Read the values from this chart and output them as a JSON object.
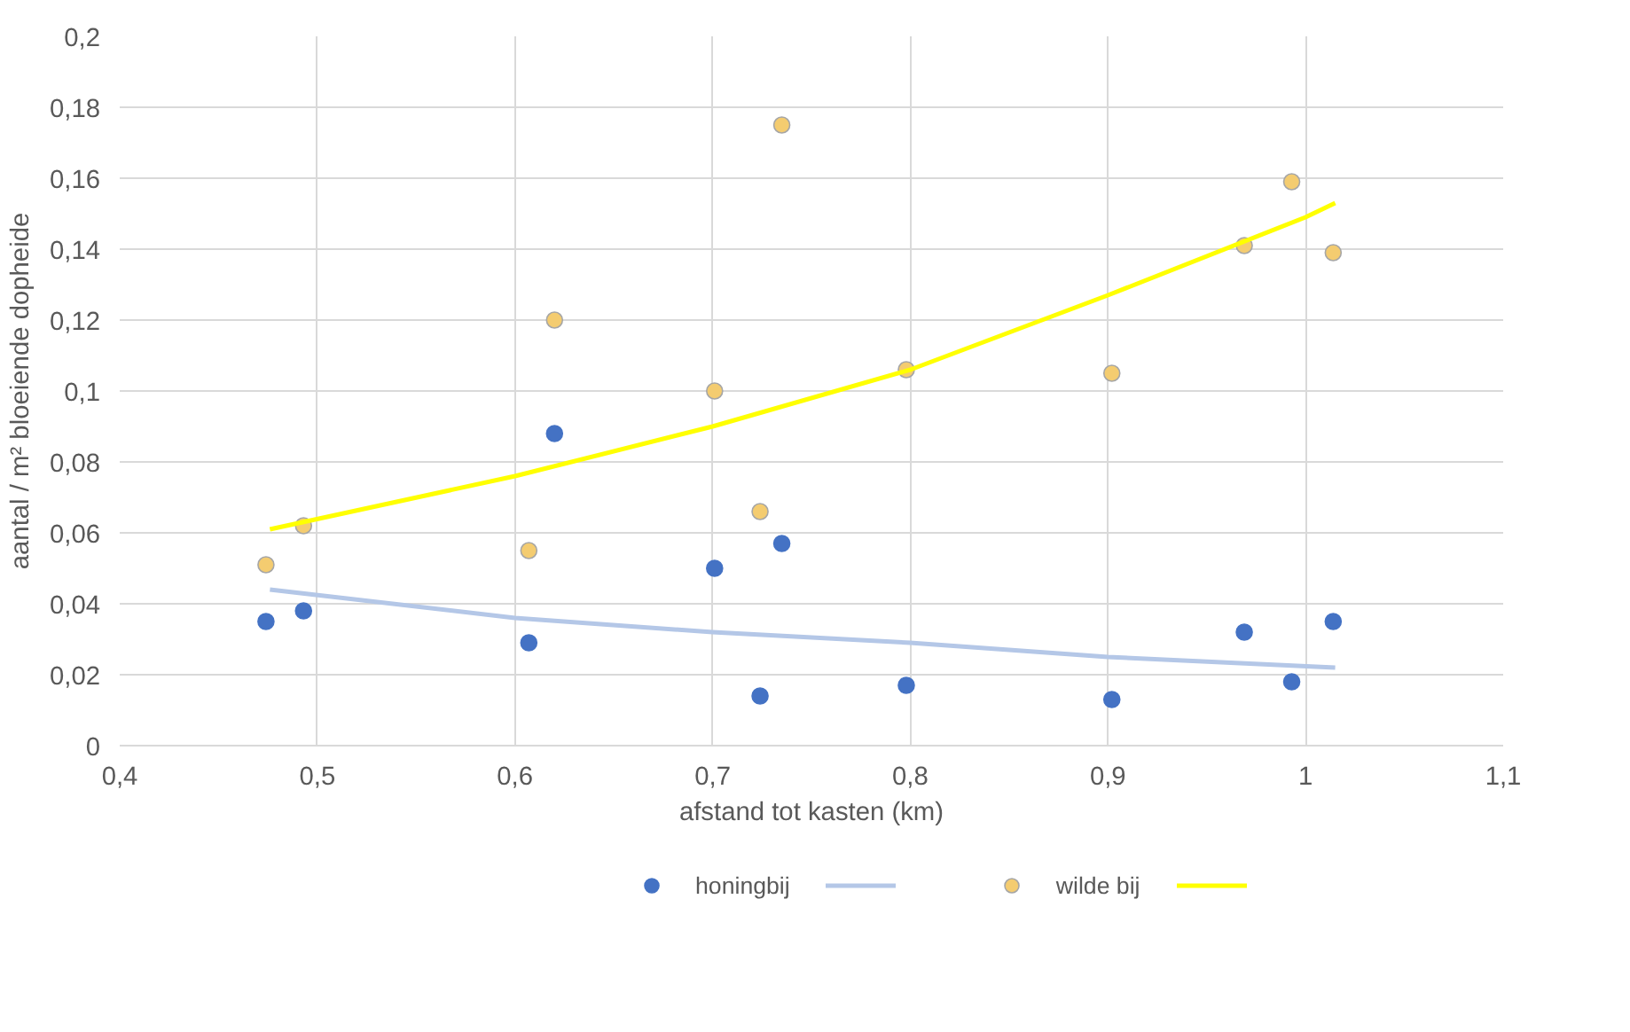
{
  "chart_data": {
    "type": "scatter",
    "xlabel": "afstand tot kasten (km)",
    "ylabel": "aantal / m² bloeiende dopheide",
    "xlim": [
      0.4,
      1.1
    ],
    "ylim": [
      0,
      0.2
    ],
    "xticks": [
      {
        "value": 0.4,
        "label": "0,4"
      },
      {
        "value": 0.5,
        "label": "0,5"
      },
      {
        "value": 0.6,
        "label": "0,6"
      },
      {
        "value": 0.7,
        "label": "0,7"
      },
      {
        "value": 0.8,
        "label": "0,8"
      },
      {
        "value": 0.9,
        "label": "0,9"
      },
      1,
      {
        "value": 1.1,
        "label": "1,1"
      }
    ],
    "yticks": [
      0,
      {
        "value": 0.02,
        "label": "0,02"
      },
      {
        "value": 0.04,
        "label": "0,04"
      },
      {
        "value": 0.06,
        "label": "0,06"
      },
      {
        "value": 0.08,
        "label": "0,08"
      },
      {
        "value": 0.1,
        "label": "0,1"
      },
      {
        "value": 0.12,
        "label": "0,12"
      },
      {
        "value": 0.14,
        "label": "0,14"
      },
      {
        "value": 0.16,
        "label": "0,16"
      },
      {
        "value": 0.18,
        "label": "0,18"
      },
      {
        "value": 0.2,
        "label": "0,2"
      }
    ],
    "grid": true,
    "legend": "bottom",
    "marker": "circle",
    "series": [
      {
        "name": "honingbij",
        "color": "#4472c4",
        "x": [
          0.474,
          0.493,
          0.607,
          0.62,
          0.701,
          0.724,
          0.735,
          0.798,
          0.902,
          0.969,
          0.993,
          1.014
        ],
        "values": [
          0.035,
          0.038,
          0.029,
          0.088,
          0.05,
          0.014,
          0.057,
          0.017,
          0.013,
          0.032,
          0.018,
          0.035
        ]
      },
      {
        "type": "line",
        "color": "#b4c7e7",
        "marker": "none",
        "x": [
          0.476,
          0.6,
          0.7,
          0.8,
          0.9,
          1.015
        ],
        "values": [
          0.044,
          0.036,
          0.032,
          0.029,
          0.025,
          0.022
        ]
      },
      {
        "name": "wilde bij",
        "color": "#f4cc70",
        "x": [
          0.474,
          0.493,
          0.607,
          0.62,
          0.701,
          0.724,
          0.735,
          0.798,
          0.902,
          0.969,
          0.993,
          1.014
        ],
        "values": [
          0.051,
          0.062,
          0.055,
          0.12,
          0.1,
          0.066,
          0.175,
          0.106,
          0.105,
          0.141,
          0.159,
          0.139
        ]
      },
      {
        "type": "line",
        "color": "#ffff00",
        "marker": "none",
        "x": [
          0.476,
          0.6,
          0.7,
          0.8,
          0.9,
          1.0,
          1.015
        ],
        "values": [
          0.061,
          0.076,
          0.09,
          0.106,
          0.127,
          0.149,
          0.153
        ]
      }
    ]
  }
}
